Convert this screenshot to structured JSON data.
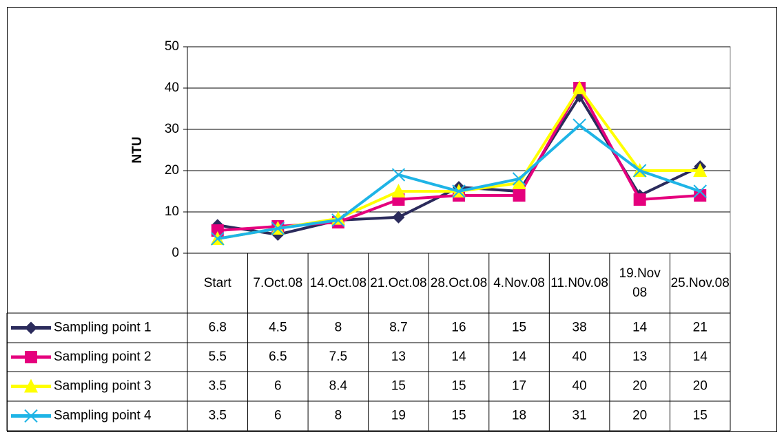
{
  "chart_data": {
    "type": "line",
    "y_label": "NTU",
    "categories": [
      "Start",
      "7.Oct.08",
      "14.Oct.08",
      "21.Oct.08",
      "28.Oct.08",
      "4.Nov.08",
      "11.N0v.08",
      "19.Nov 08",
      "25.Nov.08"
    ],
    "series": [
      {
        "name": "Sampling point 1",
        "color": "#2b2b5c",
        "marker": "diamond",
        "values": [
          6.8,
          4.5,
          8,
          8.7,
          16,
          15,
          38,
          14,
          21
        ]
      },
      {
        "name": "Sampling point 2",
        "color": "#e5007d",
        "marker": "square",
        "values": [
          5.5,
          6.5,
          7.5,
          13,
          14,
          14,
          40,
          13,
          14
        ]
      },
      {
        "name": "Sampling point 3",
        "color": "#ffff00",
        "marker": "triangle",
        "values": [
          3.5,
          6,
          8.4,
          15,
          15,
          17,
          40,
          20,
          20
        ]
      },
      {
        "name": "Sampling point 4",
        "color": "#1eb4e6",
        "marker": "x",
        "values": [
          3.5,
          6,
          8,
          19,
          15,
          18,
          31,
          20,
          15
        ]
      }
    ],
    "ylim": [
      0,
      50
    ],
    "yticks": [
      0,
      10,
      20,
      30,
      40,
      50
    ],
    "grid": true,
    "data_table": true
  }
}
